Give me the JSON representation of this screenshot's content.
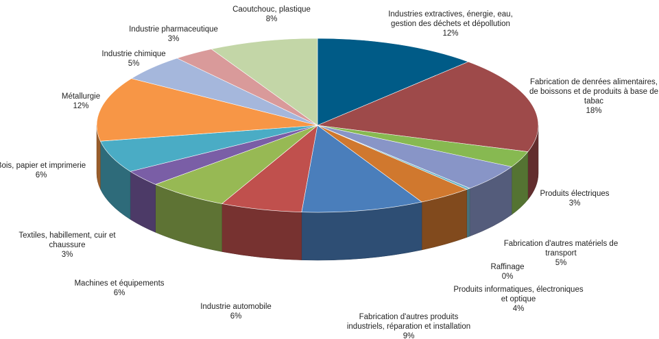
{
  "chart_data": {
    "type": "pie",
    "title": "",
    "style": "3d-exploded",
    "slices": [
      {
        "label_lines": [
          "Industries extractives, énergie, eau,",
          "gestion des déchets et dépollution"
        ],
        "value_label": "12%",
        "value": 12,
        "color": "#005b87"
      },
      {
        "label_lines": [
          "Fabrication de denrées alimentaires,",
          "de boissons et de produits à base de",
          "tabac"
        ],
        "value_label": "18%",
        "value": 18,
        "color": "#9e4a4a"
      },
      {
        "label_lines": [
          "Produits électriques"
        ],
        "value_label": "3%",
        "value": 3,
        "color": "#87b951"
      },
      {
        "label_lines": [
          "Fabrication d'autres matériels de",
          "transport"
        ],
        "value_label": "5%",
        "value": 5,
        "color": "#8895c7"
      },
      {
        "label_lines": [
          "Raffinage"
        ],
        "value_label": "0%",
        "value": 0.3,
        "color": "#6fb5c7"
      },
      {
        "label_lines": [
          "Produits informatiques, électroniques",
          "et optique"
        ],
        "value_label": "4%",
        "value": 4,
        "color": "#d0782e"
      },
      {
        "label_lines": [
          "Fabrication d'autres produits",
          "industriels, réparation et installation"
        ],
        "value_label": "9%",
        "value": 9,
        "color": "#4a7ebb"
      },
      {
        "label_lines": [
          "Industrie automobile"
        ],
        "value_label": "6%",
        "value": 6,
        "color": "#c0504d"
      },
      {
        "label_lines": [
          "Machines et équipements"
        ],
        "value_label": "6%",
        "value": 6,
        "color": "#97b954"
      },
      {
        "label_lines": [
          "Textiles, habillement, cuir et",
          "chaussure"
        ],
        "value_label": "3%",
        "value": 3,
        "color": "#7a5ea6"
      },
      {
        "label_lines": [
          "Bois, papier et imprimerie"
        ],
        "value_label": "6%",
        "value": 6,
        "color": "#4aacc5"
      },
      {
        "label_lines": [
          "Métallurgie"
        ],
        "value_label": "12%",
        "value": 12,
        "color": "#f79646"
      },
      {
        "label_lines": [
          "Industrie chimique"
        ],
        "value_label": "5%",
        "value": 5,
        "color": "#a5b7dc"
      },
      {
        "label_lines": [
          "Industrie pharmaceutique"
        ],
        "value_label": "3%",
        "value": 3,
        "color": "#d99a9a"
      },
      {
        "label_lines": [
          "Caoutchouc, plastique"
        ],
        "value_label": "8%",
        "value": 8,
        "color": "#c3d6a7"
      }
    ]
  }
}
